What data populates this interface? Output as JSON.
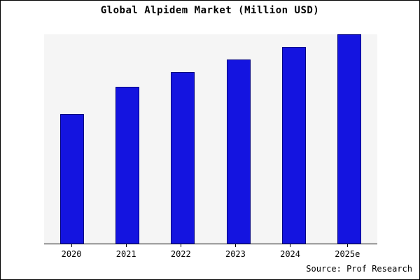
{
  "title": "Global Alpidem Market (Million USD)",
  "source": "Source: Prof Research",
  "colors": {
    "bar_fill": "#1414e0",
    "bar_border": "#000080",
    "plot_bg": "#f5f5f5",
    "frame_border": "#000000"
  },
  "chart_data": {
    "type": "bar",
    "title": "Global Alpidem Market (Million USD)",
    "categories": [
      "2020",
      "2021",
      "2022",
      "2023",
      "2024",
      "2025e"
    ],
    "values": [
      62,
      75,
      82,
      88,
      94,
      100
    ],
    "xlabel": "",
    "ylabel": "",
    "ylim": [
      0,
      100
    ],
    "grid": false,
    "legend": false,
    "annotations": [
      "Source: Prof Research"
    ]
  }
}
